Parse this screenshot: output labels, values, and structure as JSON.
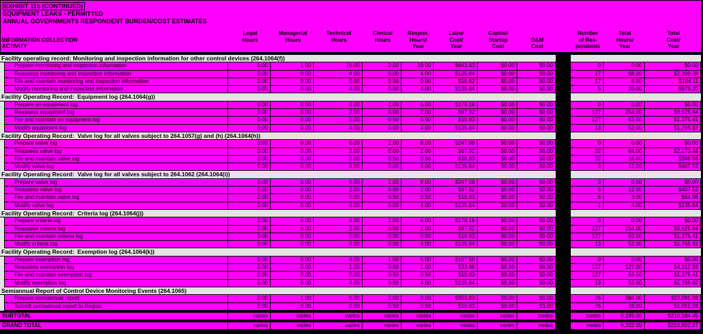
{
  "title_lines": [
    "EXHIBIT 11b (CONTINUED)",
    "EQUIPMENT LEAKS - PERMITTED",
    "ANNUAL GOVERNMENTS RESPONDENT BURDEN/COST ESTIMATES"
  ],
  "row_header": {
    "line1": "INFORMATION COLLECTION",
    "line2": "ACTIVITY"
  },
  "columns": [
    {
      "id": "legal-hours",
      "lines": [
        "Legal",
        "Hours"
      ]
    },
    {
      "id": "managerial-hours",
      "lines": [
        "Managerial",
        "Hours"
      ]
    },
    {
      "id": "technical-hours",
      "lines": [
        "Technical",
        "Hours"
      ]
    },
    {
      "id": "clerical-hours",
      "lines": [
        "Clerical",
        "Hours"
      ]
    },
    {
      "id": "respondent-hours",
      "lines": [
        "Respon.",
        "Hours/",
        "Year"
      ]
    },
    {
      "id": "labor-cost",
      "lines": [
        "Labor",
        "Cost/",
        "Year"
      ]
    },
    {
      "id": "capital-startup",
      "lines": [
        "Capital/",
        "Startup",
        "Cost"
      ]
    },
    {
      "id": "om-cost",
      "lines": [
        "O&M",
        "Cost"
      ],
      "offset": true
    },
    {
      "id": "num-respondents",
      "lines": [
        "Number",
        "of Res-",
        "pondents"
      ]
    },
    {
      "id": "total-hours",
      "lines": [
        "Total",
        "Hours/",
        "Year"
      ]
    },
    {
      "id": "total-cost",
      "lines": [
        "Total",
        "Cost/",
        "Year"
      ]
    }
  ],
  "sections": [
    {
      "header": "Facility operating record: Monitoring and inspection information for other control devices (264.1064(f))",
      "labor_patch": false,
      "rows": [
        {
          "label": "Prepare monitoring and inspection information",
          "values": [
            "0.00",
            "1.00",
            "16.00",
            "2.00",
            "19.00",
            "$643.43",
            "$0.00",
            "$0.00",
            "0",
            "0.00",
            "$0.00"
          ]
        },
        {
          "label": "Reassess monitoring and inspection information",
          "values": [
            "0.00",
            "0.00",
            "4.00",
            "0.00",
            "4.00",
            "$135.84",
            "$0.00",
            "$0.00",
            "17",
            "68.00",
            "$2,309.28"
          ]
        },
        {
          "label": "File and maintain monitoring and inspection information",
          "values": [
            "0.00",
            "0.00",
            "0.00",
            "0.50",
            "0.50",
            "$10.83",
            "$0.00",
            "$0.00",
            "17",
            "8.50",
            "$184.11"
          ]
        },
        {
          "label": "Modify monitoring and inspection information",
          "values": [
            "0.00",
            "0.00",
            "4.00",
            "0.00",
            "4.00",
            "$135.84",
            "$0.00",
            "$0.00",
            "5",
            "20.00",
            "$679.20"
          ]
        }
      ]
    },
    {
      "header": "Facility Operating Record:  Equipment log (264.1064(g))",
      "labor_patch": true,
      "rows": [
        {
          "label": "Prepare an equipment log",
          "values": [
            "0.00",
            "0.00",
            "4.00",
            "2.00",
            "6.00",
            "$179.16",
            "$0.00",
            "$0.00",
            "0",
            "0.00",
            "$0.00"
          ]
        },
        {
          "label": "Reassess equipment log",
          "values": [
            "0.00",
            "0.00",
            "2.00",
            "0.00",
            "2.00",
            "$67.92",
            "$0.00",
            "$0.00",
            "127",
            "254.00",
            "$8,625.84"
          ]
        },
        {
          "label": "File and maintain an equipment log",
          "values": [
            "0.00",
            "0.00",
            "0.00",
            "0.50",
            "0.50",
            "$10.83",
            "$0.00",
            "$0.00",
            "127",
            "63.50",
            "$1,375.41"
          ]
        },
        {
          "label": "Modify equipment log",
          "values": [
            "0.00",
            "0.00",
            "4.00",
            "0.00",
            "4.00",
            "$135.84",
            "$0.00",
            "$0.00",
            "13",
            "52.00",
            "$1,765.92"
          ]
        }
      ]
    },
    {
      "header": "Facility Operating Record:  Valve log for all valves subject to 264.1057(g) and (h) (264.1064(h))",
      "labor_patch": true,
      "rows": [
        {
          "label": "Prepare valve log",
          "values": [
            "0.00",
            "0.00",
            "6.00",
            "2.00",
            "8.00",
            "$247.08",
            "$0.00",
            "$0.00",
            "0",
            "0.00",
            "$0.00"
          ]
        },
        {
          "label": "Reassess valve log",
          "values": [
            "0.00",
            "0.00",
            "2.00",
            "0.00",
            "2.00",
            "$67.92",
            "$0.00",
            "$0.00",
            "32",
            "64.00",
            "$2,173.44"
          ]
        },
        {
          "label": "File and maintain valve log",
          "values": [
            "0.00",
            "0.00",
            "0.00",
            "0.50",
            "0.50",
            "$10.83",
            "$0.00",
            "$0.00",
            "32",
            "16.00",
            "$346.56"
          ]
        },
        {
          "label": "Modify valve log",
          "values": [
            "0.00",
            "0.00",
            "4.00",
            "0.00",
            "4.00",
            "$135.84",
            "$0.00",
            "$0.00",
            "3",
            "12.00",
            "$407.52"
          ]
        }
      ]
    },
    {
      "header": "Facility Operating Record:  Valve log for all valves subject to 264.1062 (264.1064(i))",
      "labor_patch": true,
      "rows": [
        {
          "label": "Prepare valve log",
          "values": [
            "0.00",
            "0.00",
            "6.00",
            "2.00",
            "8.00",
            "$247.08",
            "$0.00",
            "$0.00",
            "0",
            "0.00",
            "$0.00"
          ]
        },
        {
          "label": "Reassess valve log",
          "values": [
            "0.00",
            "0.00",
            "2.00",
            "0.00",
            "2.00",
            "$67.92",
            "$0.00",
            "$0.00",
            "6",
            "12.00",
            "$407.52"
          ]
        },
        {
          "label": "File and maintain valve log",
          "values": [
            "0.00",
            "0.00",
            "0.00",
            "0.50",
            "0.50",
            "$10.83",
            "$0.00",
            "$0.00",
            "6",
            "3.00",
            "$64.98"
          ]
        },
        {
          "label": "Modify valve log",
          "values": [
            "0.00",
            "0.00",
            "4.00",
            "0.00",
            "4.00",
            "$135.84",
            "$0.00",
            "$0.00",
            "1",
            "4.00",
            "$135.84"
          ]
        }
      ]
    },
    {
      "header": "Facility Operating Record:  Criteria log (264.1064(j))",
      "labor_patch": true,
      "rows": [
        {
          "label": "Prepare criteria log",
          "values": [
            "0.00",
            "0.00",
            "4.00",
            "2.00",
            "6.00",
            "$179.16",
            "$0.00",
            "$0.00",
            "0",
            "0.00",
            "$0.00"
          ]
        },
        {
          "label": "Reassess criteria log",
          "values": [
            "0.00",
            "0.00",
            "2.00",
            "0.00",
            "2.00",
            "$67.92",
            "$0.00",
            "$0.00",
            "127",
            "254.00",
            "$8,625.84"
          ]
        },
        {
          "label": "File and maintain criteria log",
          "values": [
            "0.00",
            "0.00",
            "0.00",
            "0.50",
            "0.50",
            "$10.83",
            "$0.00",
            "$0.00",
            "127",
            "63.50",
            "$1,375.41"
          ]
        },
        {
          "label": "Modify criteria log",
          "values": [
            "0.00",
            "0.00",
            "4.00",
            "0.00",
            "4.00",
            "$135.84",
            "$0.00",
            "$0.00",
            "13",
            "52.00",
            "$1,765.92"
          ]
        }
      ]
    },
    {
      "header": "Facility Operating Record:  Exemption log (264.1064(k))",
      "labor_patch": true,
      "rows": [
        {
          "label": "Prepare exemption log",
          "values": [
            "0.00",
            "0.00",
            "4.00",
            "1.00",
            "5.00",
            "$157.50",
            "$0.00",
            "$0.00",
            "0",
            "0.00",
            "$0.00"
          ]
        },
        {
          "label": "Reassess exemption log",
          "values": [
            "0.00",
            "0.00",
            "1.00",
            "0.00",
            "1.00",
            "$33.96",
            "$0.00",
            "$0.00",
            "127",
            "127.00",
            "$4,312.92"
          ]
        },
        {
          "label": "File and maintain exemption log",
          "values": [
            "0.00",
            "0.00",
            "0.00",
            "0.50",
            "0.50",
            "$10.83",
            "$0.00",
            "$0.00",
            "127",
            "63.50",
            "$1,375.41"
          ]
        },
        {
          "label": "Modify exemption log",
          "values": [
            "0.00",
            "0.00",
            "4.00",
            "0.00",
            "4.00",
            "$135.84",
            "$0.00",
            "$0.00",
            "13",
            "52.00",
            "$1,765.92"
          ]
        }
      ]
    },
    {
      "header": "Semiannual Report of Control Device Monitoring Events (264.1065)",
      "labor_patch": true,
      "rows": [
        {
          "label": "Prepare semiannual report",
          "values": [
            "0.00",
            "1.00",
            "6.00",
            "2.00",
            "9.00",
            "$303.83",
            "$0.00",
            "$0.00",
            "76",
            "684.00",
            "$23,091.08"
          ]
        },
        {
          "label": "Submit semiannual report to Region",
          "values": [
            "0.00",
            "0.00",
            "0.00",
            "0.50",
            "0.50",
            "$10.83",
            "$0.00",
            "$3.00",
            "76",
            "38.00",
            "$1,051.08"
          ]
        }
      ]
    }
  ],
  "totals": [
    {
      "label": "SUBTOTAL",
      "values": [
        "varies",
        "varies",
        "varies",
        "varies",
        "varies",
        "varies",
        "varies",
        "varies",
        "varies",
        "6,195.00",
        "$210,184.45"
      ]
    },
    {
      "label": "GRAND TOTAL",
      "values": [
        "varies",
        "varies",
        "varies",
        "varies",
        "varies",
        "varies",
        "varies",
        "varies",
        "varies",
        "6,332.00",
        "$214,802.87"
      ]
    }
  ],
  "colors": {
    "data_cell": "#FF00FF",
    "section_row": "#E4E4E4",
    "grid": "#000000"
  }
}
